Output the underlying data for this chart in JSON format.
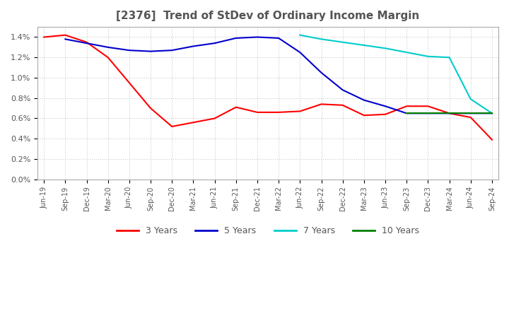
{
  "title": "[2376]  Trend of StDev of Ordinary Income Margin",
  "title_fontsize": 11,
  "title_color": "#555555",
  "background_color": "#ffffff",
  "plot_background_color": "#ffffff",
  "grid_color": "#cccccc",
  "ylim": [
    0.0,
    0.015
  ],
  "yticks": [
    0.0,
    0.002,
    0.004,
    0.006,
    0.008,
    0.01,
    0.012,
    0.014
  ],
  "ytick_labels": [
    "0.0%",
    "0.2%",
    "0.4%",
    "0.6%",
    "0.8%",
    "1.0%",
    "1.2%",
    "1.4%"
  ],
  "x_labels": [
    "Jun-19",
    "Sep-19",
    "Dec-19",
    "Mar-20",
    "Jun-20",
    "Sep-20",
    "Dec-20",
    "Mar-21",
    "Jun-21",
    "Sep-21",
    "Dec-21",
    "Mar-22",
    "Jun-22",
    "Sep-22",
    "Dec-22",
    "Mar-23",
    "Jun-23",
    "Sep-23",
    "Dec-23",
    "Mar-24",
    "Jun-24",
    "Sep-24"
  ],
  "series": {
    "3 Years": {
      "color": "#ff0000",
      "values": [
        0.014,
        0.0142,
        0.0135,
        0.012,
        0.0095,
        0.007,
        0.0052,
        0.0056,
        0.006,
        0.0071,
        0.0066,
        0.0066,
        0.0067,
        0.0074,
        0.0073,
        0.0063,
        0.0064,
        0.0072,
        0.0072,
        0.0065,
        0.0061,
        0.0039
      ]
    },
    "5 Years": {
      "color": "#0000cc",
      "values": [
        null,
        0.0138,
        0.0134,
        0.013,
        0.0127,
        0.0126,
        0.0127,
        0.0131,
        0.0134,
        0.0139,
        0.014,
        0.0139,
        0.0125,
        0.0105,
        0.0088,
        0.0078,
        0.0072,
        0.0065,
        0.0065,
        0.0065,
        0.0065,
        0.0065
      ]
    },
    "7 Years": {
      "color": "#00cccc",
      "values": [
        null,
        null,
        null,
        null,
        null,
        null,
        null,
        null,
        null,
        null,
        null,
        null,
        0.0142,
        0.0138,
        0.0135,
        0.0132,
        0.0129,
        0.0125,
        0.0121,
        0.012,
        0.0079,
        0.0065
      ]
    },
    "10 Years": {
      "color": "#008000",
      "values": [
        null,
        null,
        null,
        null,
        null,
        null,
        null,
        null,
        null,
        null,
        null,
        null,
        null,
        null,
        null,
        null,
        null,
        0.0065,
        0.0065,
        0.0065,
        0.0065,
        0.0065
      ]
    }
  },
  "legend_labels": [
    "3 Years",
    "5 Years",
    "7 Years",
    "10 Years"
  ],
  "legend_colors": [
    "#ff0000",
    "#0000cc",
    "#00cccc",
    "#008000"
  ]
}
